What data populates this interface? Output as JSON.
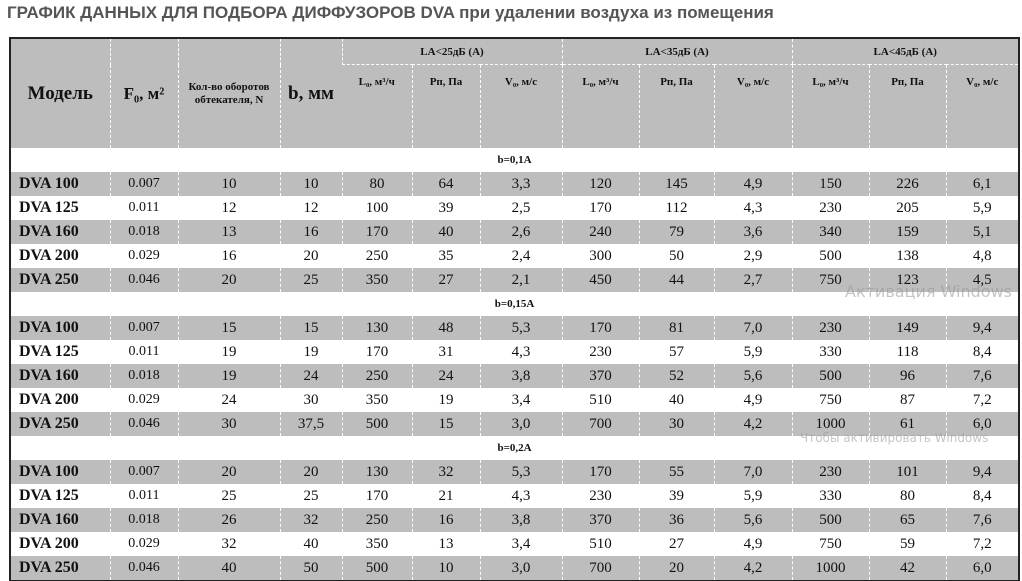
{
  "title": "ГРАФИК ДАННЫХ ДЛЯ ПОДБОРА ДИФФУЗОРОВ DVA при удалении воздуха из помещения",
  "headers": {
    "model": "Модель",
    "f0": "F₀, м²",
    "n": "Кол-во оборотов обтекателя, N",
    "b": "b, мм",
    "groups": [
      "LA<25дБ (A)",
      "LA<35дБ (A)",
      "LA<45дБ (A)"
    ],
    "sub": [
      "L₀, м³/ч",
      "Pп, Па",
      "V₀, м/с"
    ]
  },
  "sections": [
    {
      "label": "b=0,1A",
      "rows": [
        [
          "DVA 100",
          "0.007",
          "10",
          "10",
          "80",
          "64",
          "3,3",
          "120",
          "145",
          "4,9",
          "150",
          "226",
          "6,1"
        ],
        [
          "DVA 125",
          "0.011",
          "12",
          "12",
          "100",
          "39",
          "2,5",
          "170",
          "112",
          "4,3",
          "230",
          "205",
          "5,9"
        ],
        [
          "DVA 160",
          "0.018",
          "13",
          "16",
          "170",
          "40",
          "2,6",
          "240",
          "79",
          "3,6",
          "340",
          "159",
          "5,1"
        ],
        [
          "DVA 200",
          "0.029",
          "16",
          "20",
          "250",
          "35",
          "2,4",
          "300",
          "50",
          "2,9",
          "500",
          "138",
          "4,8"
        ],
        [
          "DVA 250",
          "0.046",
          "20",
          "25",
          "350",
          "27",
          "2,1",
          "450",
          "44",
          "2,7",
          "750",
          "123",
          "4,5"
        ]
      ]
    },
    {
      "label": "b=0,15A",
      "rows": [
        [
          "DVA 100",
          "0.007",
          "15",
          "15",
          "130",
          "48",
          "5,3",
          "170",
          "81",
          "7,0",
          "230",
          "149",
          "9,4"
        ],
        [
          "DVA 125",
          "0.011",
          "19",
          "19",
          "170",
          "31",
          "4,3",
          "230",
          "57",
          "5,9",
          "330",
          "118",
          "8,4"
        ],
        [
          "DVA 160",
          "0.018",
          "19",
          "24",
          "250",
          "24",
          "3,8",
          "370",
          "52",
          "5,6",
          "500",
          "96",
          "7,6"
        ],
        [
          "DVA 200",
          "0.029",
          "24",
          "30",
          "350",
          "19",
          "3,4",
          "510",
          "40",
          "4,9",
          "750",
          "87",
          "7,2"
        ],
        [
          "DVA 250",
          "0.046",
          "30",
          "37,5",
          "500",
          "15",
          "3,0",
          "700",
          "30",
          "4,2",
          "1000",
          "61",
          "6,0"
        ]
      ]
    },
    {
      "label": "b=0,2A",
      "rows": [
        [
          "DVA 100",
          "0.007",
          "20",
          "20",
          "130",
          "32",
          "5,3",
          "170",
          "55",
          "7,0",
          "230",
          "101",
          "9,4"
        ],
        [
          "DVA 125",
          "0.011",
          "25",
          "25",
          "170",
          "21",
          "4,3",
          "230",
          "39",
          "5,9",
          "330",
          "80",
          "8,4"
        ],
        [
          "DVA 160",
          "0.018",
          "26",
          "32",
          "250",
          "16",
          "3,8",
          "370",
          "36",
          "5,6",
          "500",
          "65",
          "7,6"
        ],
        [
          "DVA 200",
          "0.029",
          "32",
          "40",
          "350",
          "13",
          "3,4",
          "510",
          "27",
          "4,9",
          "750",
          "59",
          "7,2"
        ],
        [
          "DVA 250",
          "0.046",
          "40",
          "50",
          "500",
          "10",
          "3,0",
          "700",
          "20",
          "4,2",
          "1000",
          "42",
          "6,0"
        ]
      ]
    }
  ],
  "watermark": {
    "line1": "Активация Windows",
    "line2": "Чтобы активировать Windows"
  },
  "colors": {
    "row_gray": "#bdbdbd",
    "title": "#555555"
  }
}
